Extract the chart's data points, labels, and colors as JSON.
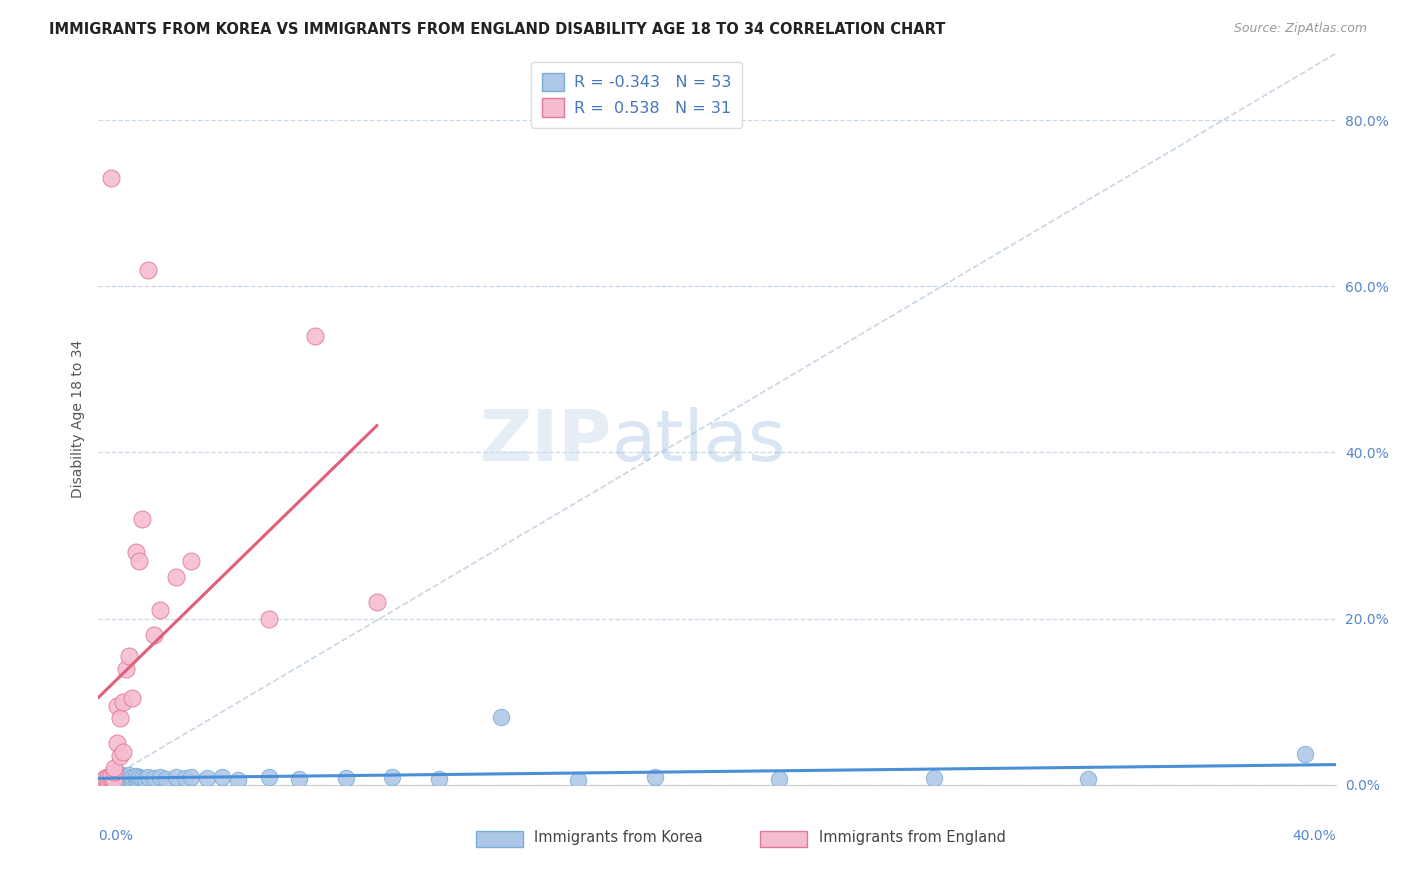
{
  "title": "IMMIGRANTS FROM KOREA VS IMMIGRANTS FROM ENGLAND DISABILITY AGE 18 TO 34 CORRELATION CHART",
  "source": "Source: ZipAtlas.com",
  "ylabel": "Disability Age 18 to 34",
  "yticks": [
    "0.0%",
    "20.0%",
    "40.0%",
    "60.0%",
    "80.0%"
  ],
  "ytick_vals": [
    0.0,
    0.2,
    0.4,
    0.6,
    0.8
  ],
  "xlim": [
    0.0,
    0.4
  ],
  "ylim": [
    0.0,
    0.88
  ],
  "korea_color": "#aec6e8",
  "korea_edge": "#7aafd4",
  "england_color": "#f5bcd0",
  "england_edge": "#e07898",
  "korea_line_color": "#4a90d9",
  "england_line_color": "#e0607a",
  "ref_line_color": "#c8d8ec",
  "legend_korea_R": "-0.343",
  "legend_korea_N": "53",
  "legend_england_R": "0.538",
  "legend_england_N": "31",
  "korea_scatter_x": [
    0.001,
    0.002,
    0.002,
    0.003,
    0.003,
    0.003,
    0.004,
    0.004,
    0.004,
    0.005,
    0.005,
    0.005,
    0.006,
    0.006,
    0.007,
    0.007,
    0.007,
    0.008,
    0.008,
    0.009,
    0.009,
    0.01,
    0.01,
    0.011,
    0.011,
    0.012,
    0.012,
    0.013,
    0.013,
    0.014,
    0.015,
    0.016,
    0.018,
    0.02,
    0.022,
    0.025,
    0.028,
    0.03,
    0.035,
    0.04,
    0.045,
    0.055,
    0.065,
    0.08,
    0.095,
    0.11,
    0.13,
    0.155,
    0.18,
    0.22,
    0.27,
    0.32,
    0.39
  ],
  "korea_scatter_y": [
    0.003,
    0.005,
    0.008,
    0.004,
    0.007,
    0.01,
    0.005,
    0.008,
    0.012,
    0.006,
    0.009,
    0.013,
    0.005,
    0.01,
    0.006,
    0.009,
    0.013,
    0.007,
    0.011,
    0.006,
    0.01,
    0.007,
    0.012,
    0.006,
    0.01,
    0.007,
    0.011,
    0.005,
    0.009,
    0.008,
    0.007,
    0.009,
    0.008,
    0.01,
    0.007,
    0.009,
    0.008,
    0.009,
    0.008,
    0.01,
    0.006,
    0.009,
    0.007,
    0.008,
    0.009,
    0.007,
    0.082,
    0.006,
    0.009,
    0.007,
    0.008,
    0.007,
    0.037
  ],
  "england_scatter_x": [
    0.001,
    0.002,
    0.002,
    0.003,
    0.003,
    0.004,
    0.004,
    0.004,
    0.005,
    0.005,
    0.005,
    0.006,
    0.006,
    0.007,
    0.007,
    0.008,
    0.008,
    0.009,
    0.01,
    0.011,
    0.012,
    0.013,
    0.014,
    0.016,
    0.018,
    0.02,
    0.025,
    0.03,
    0.055,
    0.07,
    0.09
  ],
  "england_scatter_y": [
    0.003,
    0.005,
    0.008,
    0.005,
    0.01,
    0.008,
    0.73,
    0.012,
    0.006,
    0.015,
    0.02,
    0.095,
    0.05,
    0.035,
    0.08,
    0.04,
    0.1,
    0.14,
    0.155,
    0.105,
    0.28,
    0.27,
    0.32,
    0.62,
    0.18,
    0.21,
    0.25,
    0.27,
    0.2,
    0.54,
    0.22
  ],
  "watermark_zip": "ZIP",
  "watermark_atlas": "atlas",
  "background_color": "#ffffff",
  "grid_color": "#c8d8e8"
}
